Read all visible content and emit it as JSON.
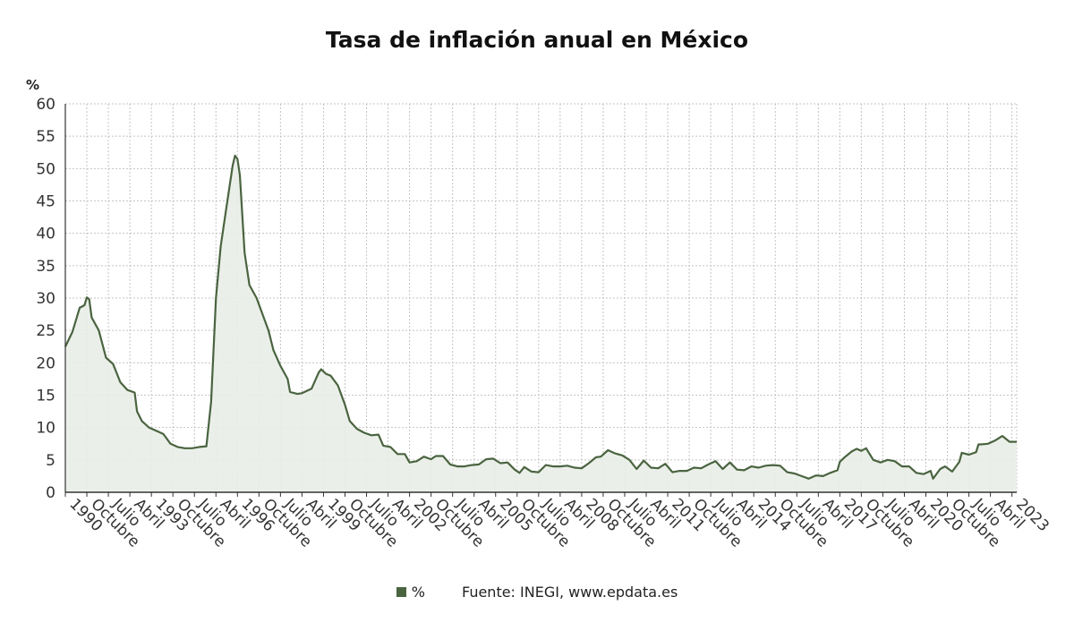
{
  "title": "Tasa de inflación anual en México",
  "unit_label": "%",
  "legend_label": "%",
  "source": "Fuente: INEGI, www.epdata.es",
  "colors": {
    "line": "#4a6440",
    "fill": "#e9ede7",
    "grid": "#c4c4c4",
    "axis": "#333333"
  },
  "chart_data": {
    "type": "area",
    "title": "Tasa de inflación anual en México",
    "ylabel": "%",
    "ylim": [
      0,
      60
    ],
    "yticks": [
      0,
      5,
      10,
      15,
      20,
      25,
      30,
      35,
      40,
      45,
      50,
      55,
      60
    ],
    "grid": true,
    "legend": "bottom-center",
    "xlim": [
      "1990-01",
      "2023-03"
    ],
    "x_tick_labels": [
      {
        "date": "1990-01",
        "label": "1990"
      },
      {
        "date": "1990-10",
        "label": "Octubre"
      },
      {
        "date": "1991-07",
        "label": "Julio"
      },
      {
        "date": "1992-04",
        "label": "Abril"
      },
      {
        "date": "1993-01",
        "label": "1993"
      },
      {
        "date": "1993-10",
        "label": "Octubre"
      },
      {
        "date": "1994-07",
        "label": "Julio"
      },
      {
        "date": "1995-04",
        "label": "Abril"
      },
      {
        "date": "1996-01",
        "label": "1996"
      },
      {
        "date": "1996-10",
        "label": "Octubre"
      },
      {
        "date": "1997-07",
        "label": "Julio"
      },
      {
        "date": "1998-04",
        "label": "Abril"
      },
      {
        "date": "1999-01",
        "label": "1999"
      },
      {
        "date": "1999-10",
        "label": "Octubre"
      },
      {
        "date": "2000-07",
        "label": "Julio"
      },
      {
        "date": "2001-04",
        "label": "Abril"
      },
      {
        "date": "2002-01",
        "label": "2002"
      },
      {
        "date": "2002-10",
        "label": "Octubre"
      },
      {
        "date": "2003-07",
        "label": "Julio"
      },
      {
        "date": "2004-04",
        "label": "Abril"
      },
      {
        "date": "2005-01",
        "label": "2005"
      },
      {
        "date": "2005-10",
        "label": "Octubre"
      },
      {
        "date": "2006-07",
        "label": "Julio"
      },
      {
        "date": "2007-04",
        "label": "Abril"
      },
      {
        "date": "2008-01",
        "label": "2008"
      },
      {
        "date": "2008-10",
        "label": "Octubre"
      },
      {
        "date": "2009-07",
        "label": "Julio"
      },
      {
        "date": "2010-04",
        "label": "Abril"
      },
      {
        "date": "2011-01",
        "label": "2011"
      },
      {
        "date": "2011-10",
        "label": "Octubre"
      },
      {
        "date": "2012-07",
        "label": "Julio"
      },
      {
        "date": "2013-04",
        "label": "Abril"
      },
      {
        "date": "2014-01",
        "label": "2014"
      },
      {
        "date": "2014-10",
        "label": "Octubre"
      },
      {
        "date": "2015-07",
        "label": "Julio"
      },
      {
        "date": "2016-04",
        "label": "Abril"
      },
      {
        "date": "2017-01",
        "label": "2017"
      },
      {
        "date": "2017-10",
        "label": "Octubre"
      },
      {
        "date": "2018-07",
        "label": "Julio"
      },
      {
        "date": "2019-04",
        "label": "Abril"
      },
      {
        "date": "2020-01",
        "label": "2020"
      },
      {
        "date": "2020-10",
        "label": "Octubre"
      },
      {
        "date": "2021-07",
        "label": "Julio"
      },
      {
        "date": "2022-04",
        "label": "Abril"
      },
      {
        "date": "2023-01",
        "label": "2023"
      }
    ],
    "series": [
      {
        "name": "%",
        "points": [
          [
            "1990-01",
            22.5
          ],
          [
            "1990-04",
            24.8
          ],
          [
            "1990-07",
            28.5
          ],
          [
            "1990-09",
            28.9
          ],
          [
            "1990-10",
            30.1
          ],
          [
            "1990-11",
            29.8
          ],
          [
            "1990-12",
            27.0
          ],
          [
            "1991-03",
            25.0
          ],
          [
            "1991-06",
            20.8
          ],
          [
            "1991-09",
            19.8
          ],
          [
            "1991-12",
            17.0
          ],
          [
            "1992-03",
            15.8
          ],
          [
            "1992-06",
            15.4
          ],
          [
            "1992-07",
            12.5
          ],
          [
            "1992-09",
            11.0
          ],
          [
            "1992-12",
            10.0
          ],
          [
            "1993-03",
            9.5
          ],
          [
            "1993-06",
            9.0
          ],
          [
            "1993-09",
            7.5
          ],
          [
            "1993-12",
            7.0
          ],
          [
            "1994-03",
            6.8
          ],
          [
            "1994-06",
            6.8
          ],
          [
            "1994-09",
            7.0
          ],
          [
            "1994-12",
            7.1
          ],
          [
            "1995-02",
            14.0
          ],
          [
            "1995-04",
            30.0
          ],
          [
            "1995-06",
            38.0
          ],
          [
            "1995-08",
            43.0
          ],
          [
            "1995-11",
            50.5
          ],
          [
            "1995-12",
            52.0
          ],
          [
            "1996-01",
            51.5
          ],
          [
            "1996-02",
            49.0
          ],
          [
            "1996-04",
            37.0
          ],
          [
            "1996-06",
            32.0
          ],
          [
            "1996-09",
            30.0
          ],
          [
            "1996-11",
            28.0
          ],
          [
            "1997-02",
            25.0
          ],
          [
            "1997-04",
            22.0
          ],
          [
            "1997-07",
            19.5
          ],
          [
            "1997-10",
            17.5
          ],
          [
            "1997-11",
            15.5
          ],
          [
            "1998-02",
            15.2
          ],
          [
            "1998-04",
            15.3
          ],
          [
            "1998-08",
            16.0
          ],
          [
            "1998-11",
            18.5
          ],
          [
            "1998-12",
            19.0
          ],
          [
            "1999-02",
            18.3
          ],
          [
            "1999-04",
            18.0
          ],
          [
            "1999-07",
            16.5
          ],
          [
            "1999-10",
            13.5
          ],
          [
            "1999-12",
            11.0
          ],
          [
            "2000-03",
            9.8
          ],
          [
            "2000-06",
            9.2
          ],
          [
            "2000-09",
            8.8
          ],
          [
            "2000-12",
            8.9
          ],
          [
            "2001-02",
            7.2
          ],
          [
            "2001-05",
            7.0
          ],
          [
            "2001-08",
            5.9
          ],
          [
            "2001-11",
            5.9
          ],
          [
            "2002-01",
            4.6
          ],
          [
            "2002-04",
            4.8
          ],
          [
            "2002-07",
            5.5
          ],
          [
            "2002-10",
            5.1
          ],
          [
            "2002-12",
            5.6
          ],
          [
            "2003-03",
            5.6
          ],
          [
            "2003-06",
            4.3
          ],
          [
            "2003-09",
            4.0
          ],
          [
            "2003-12",
            4.0
          ],
          [
            "2004-03",
            4.2
          ],
          [
            "2004-06",
            4.3
          ],
          [
            "2004-09",
            5.1
          ],
          [
            "2004-12",
            5.2
          ],
          [
            "2005-03",
            4.5
          ],
          [
            "2005-06",
            4.6
          ],
          [
            "2005-09",
            3.5
          ],
          [
            "2005-11",
            3.0
          ],
          [
            "2006-01",
            3.9
          ],
          [
            "2006-04",
            3.2
          ],
          [
            "2006-07",
            3.1
          ],
          [
            "2006-10",
            4.2
          ],
          [
            "2007-01",
            4.0
          ],
          [
            "2007-04",
            4.0
          ],
          [
            "2007-07",
            4.1
          ],
          [
            "2007-10",
            3.8
          ],
          [
            "2008-01",
            3.7
          ],
          [
            "2008-04",
            4.5
          ],
          [
            "2008-07",
            5.4
          ],
          [
            "2008-09",
            5.5
          ],
          [
            "2008-12",
            6.5
          ],
          [
            "2009-03",
            6.0
          ],
          [
            "2009-06",
            5.7
          ],
          [
            "2009-09",
            5.0
          ],
          [
            "2009-12",
            3.6
          ],
          [
            "2010-03",
            4.9
          ],
          [
            "2010-06",
            3.8
          ],
          [
            "2010-09",
            3.7
          ],
          [
            "2010-12",
            4.4
          ],
          [
            "2011-03",
            3.1
          ],
          [
            "2011-06",
            3.3
          ],
          [
            "2011-09",
            3.3
          ],
          [
            "2011-12",
            3.8
          ],
          [
            "2012-03",
            3.7
          ],
          [
            "2012-06",
            4.3
          ],
          [
            "2012-09",
            4.8
          ],
          [
            "2012-12",
            3.6
          ],
          [
            "2013-03",
            4.6
          ],
          [
            "2013-06",
            3.5
          ],
          [
            "2013-09",
            3.4
          ],
          [
            "2013-12",
            4.0
          ],
          [
            "2014-03",
            3.8
          ],
          [
            "2014-06",
            4.1
          ],
          [
            "2014-09",
            4.2
          ],
          [
            "2014-12",
            4.1
          ],
          [
            "2015-03",
            3.1
          ],
          [
            "2015-06",
            2.9
          ],
          [
            "2015-09",
            2.5
          ],
          [
            "2015-12",
            2.1
          ],
          [
            "2016-03",
            2.6
          ],
          [
            "2016-06",
            2.5
          ],
          [
            "2016-09",
            3.0
          ],
          [
            "2016-12",
            3.4
          ],
          [
            "2017-01",
            4.7
          ],
          [
            "2017-03",
            5.4
          ],
          [
            "2017-06",
            6.3
          ],
          [
            "2017-08",
            6.7
          ],
          [
            "2017-10",
            6.4
          ],
          [
            "2017-12",
            6.8
          ],
          [
            "2018-03",
            5.0
          ],
          [
            "2018-06",
            4.6
          ],
          [
            "2018-09",
            5.0
          ],
          [
            "2018-12",
            4.8
          ],
          [
            "2019-03",
            4.0
          ],
          [
            "2019-06",
            4.0
          ],
          [
            "2019-09",
            3.0
          ],
          [
            "2019-12",
            2.8
          ],
          [
            "2020-03",
            3.3
          ],
          [
            "2020-04",
            2.1
          ],
          [
            "2020-07",
            3.6
          ],
          [
            "2020-09",
            4.0
          ],
          [
            "2020-12",
            3.2
          ],
          [
            "2021-03",
            4.7
          ],
          [
            "2021-04",
            6.1
          ],
          [
            "2021-07",
            5.8
          ],
          [
            "2021-10",
            6.2
          ],
          [
            "2021-11",
            7.4
          ],
          [
            "2021-12",
            7.4
          ],
          [
            "2022-03",
            7.5
          ],
          [
            "2022-06",
            8.0
          ],
          [
            "2022-09",
            8.7
          ],
          [
            "2022-12",
            7.8
          ],
          [
            "2023-03",
            7.8
          ]
        ]
      }
    ]
  }
}
